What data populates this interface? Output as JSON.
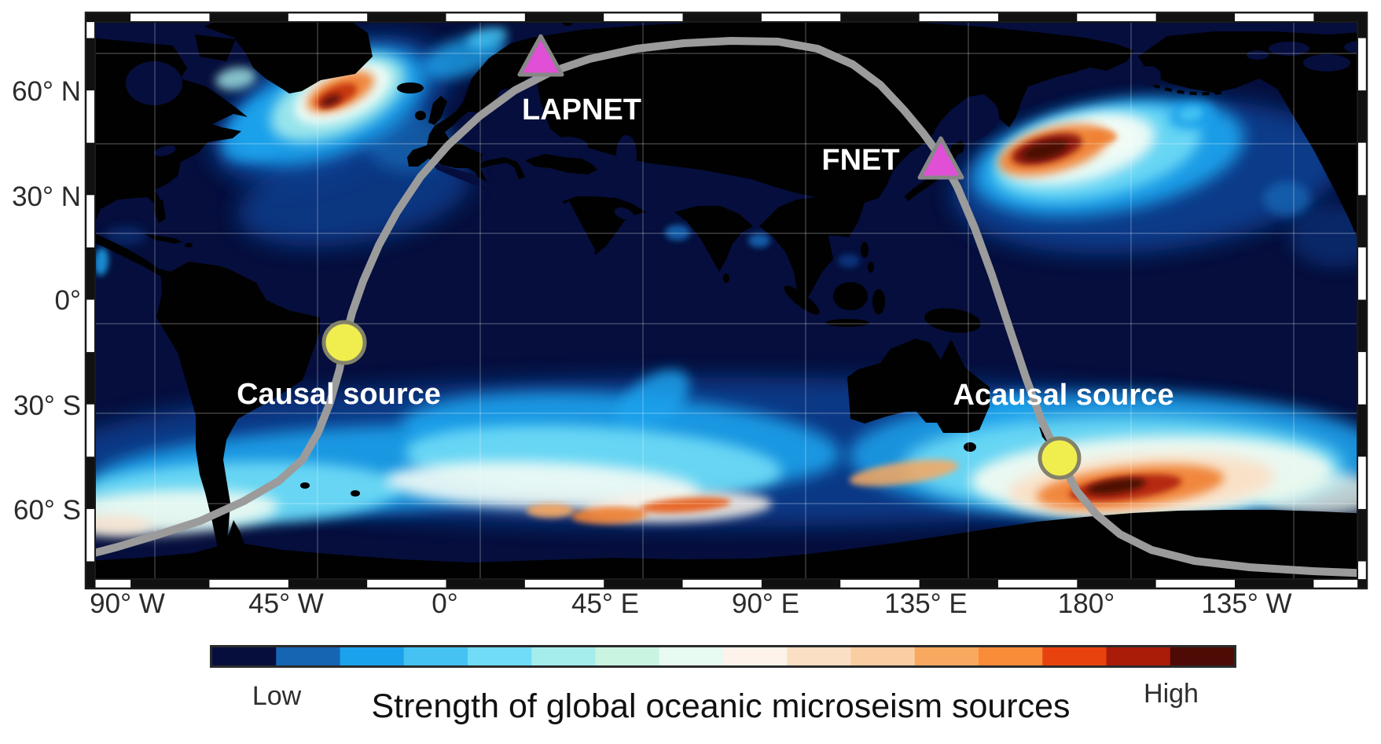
{
  "map": {
    "stations": [
      {
        "label": "LAPNET"
      },
      {
        "label": "FNET"
      }
    ],
    "sources": [
      {
        "label": "Causal source"
      },
      {
        "label": "Acausal source"
      }
    ],
    "lat_ticks": [
      {
        "label": "60° N"
      },
      {
        "label": "30° N"
      },
      {
        "label": "0°"
      },
      {
        "label": "30° S"
      },
      {
        "label": "60° S"
      }
    ],
    "lon_ticks": [
      {
        "label": "90° W"
      },
      {
        "label": "45° W"
      },
      {
        "label": "0°"
      },
      {
        "label": "45° E"
      },
      {
        "label": "90° E"
      },
      {
        "label": "135° E"
      },
      {
        "label": "180°"
      },
      {
        "label": "135° W"
      }
    ],
    "palette": {
      "ocean": "#050e3c",
      "land": "#010101",
      "great_circle": "#9b9b9b",
      "station_marker": "#e14fd7",
      "station_marker_border": "#878787",
      "source_marker": "#f0ee4e",
      "source_marker_border": "#82826a",
      "gridline": "rgba(255,255,255,0.3)"
    }
  },
  "colorbar": {
    "low_label": "Low",
    "high_label": "High",
    "title": "Strength of global oceanic microseism sources",
    "colors": [
      "#060e3d",
      "#1565b2",
      "#1ba2ec",
      "#45c2f2",
      "#70dcf6",
      "#a5ecec",
      "#c9f4e2",
      "#e7fbf2",
      "#fdf3ea",
      "#fbdfc4",
      "#fbcda2",
      "#f9a860",
      "#f88c38",
      "#e8430f",
      "#ab1c08",
      "#4e0a05"
    ]
  }
}
